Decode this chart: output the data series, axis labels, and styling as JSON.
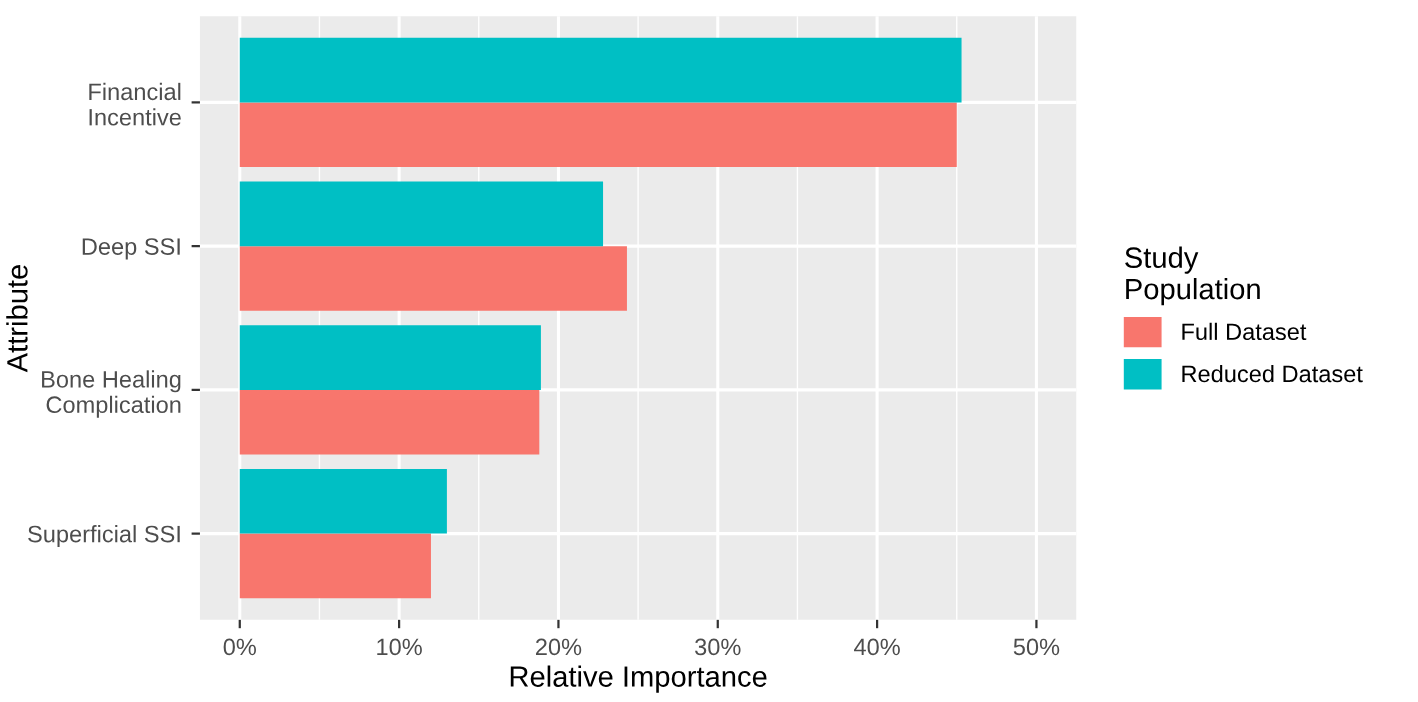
{
  "chart_data": {
    "type": "bar",
    "orientation": "horizontal",
    "categories": [
      "Financial\nIncentive",
      "Deep SSI",
      "Bone Healing\nComplication",
      "Superficial SSI"
    ],
    "series": [
      {
        "name": "Full Dataset",
        "color": "#f8766d",
        "values": [
          45.0,
          24.3,
          18.8,
          12.0
        ]
      },
      {
        "name": "Reduced Dataset",
        "color": "#00bfc4",
        "values": [
          45.3,
          22.8,
          18.9,
          13.0
        ]
      }
    ],
    "xlim": [
      -2.5,
      52.5
    ],
    "xticks": [
      {
        "value": 0,
        "label": "0%"
      },
      {
        "value": 10,
        "label": "10%"
      },
      {
        "value": 20,
        "label": "20%"
      },
      {
        "value": 30,
        "label": "30%"
      },
      {
        "value": 40,
        "label": "40%"
      },
      {
        "value": 50,
        "label": "50%"
      }
    ],
    "xlabel": "Relative Importance",
    "ylabel": "Attribute",
    "legend_title": "Study\nPopulation",
    "legend": "right",
    "grid": true
  }
}
